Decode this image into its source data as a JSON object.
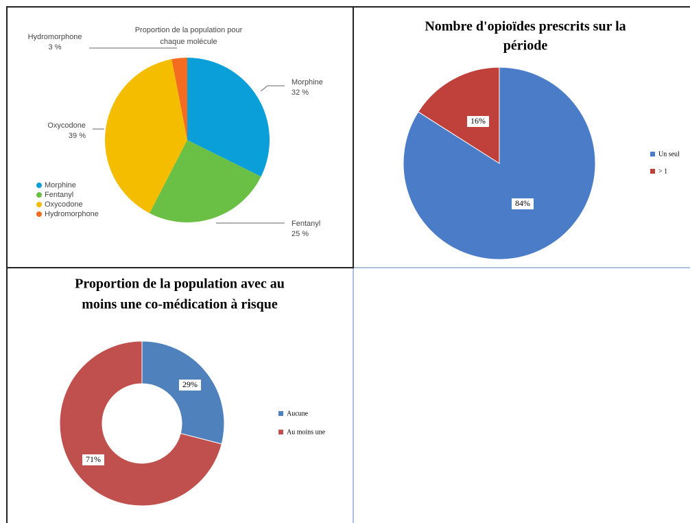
{
  "chart_data": [
    {
      "type": "pie",
      "title": [
        "Proportion de la population pour",
        "chaque molécule"
      ],
      "categories": [
        "Morphine",
        "Fentanyl",
        "Oxycodone",
        "Hydromorphone"
      ],
      "values": [
        32,
        25,
        39,
        3
      ],
      "value_labels": [
        "32 %",
        "25 %",
        "39 %",
        "3 %"
      ],
      "colors": [
        "#0a9fd8",
        "#6abf45",
        "#f5bd00",
        "#f46c1f"
      ],
      "legend": "left"
    },
    {
      "type": "pie",
      "title": [
        "Nombre d'opioïdes prescrits sur la",
        "période"
      ],
      "categories": [
        "Un seul",
        "> 1"
      ],
      "values": [
        84,
        16
      ],
      "value_labels": [
        "84%",
        "16%"
      ],
      "colors": [
        "#4a7cc7",
        "#c0403b"
      ],
      "legend": "right"
    },
    {
      "type": "donut",
      "title": [
        "Proportion de la population avec au",
        "moins une co-médication à risque"
      ],
      "categories": [
        "Aucune",
        "Au moins une"
      ],
      "values": [
        29,
        71
      ],
      "value_labels": [
        "29%",
        "71%"
      ],
      "colors": [
        "#4f81bd",
        "#c0504d"
      ],
      "legend": "right"
    }
  ]
}
